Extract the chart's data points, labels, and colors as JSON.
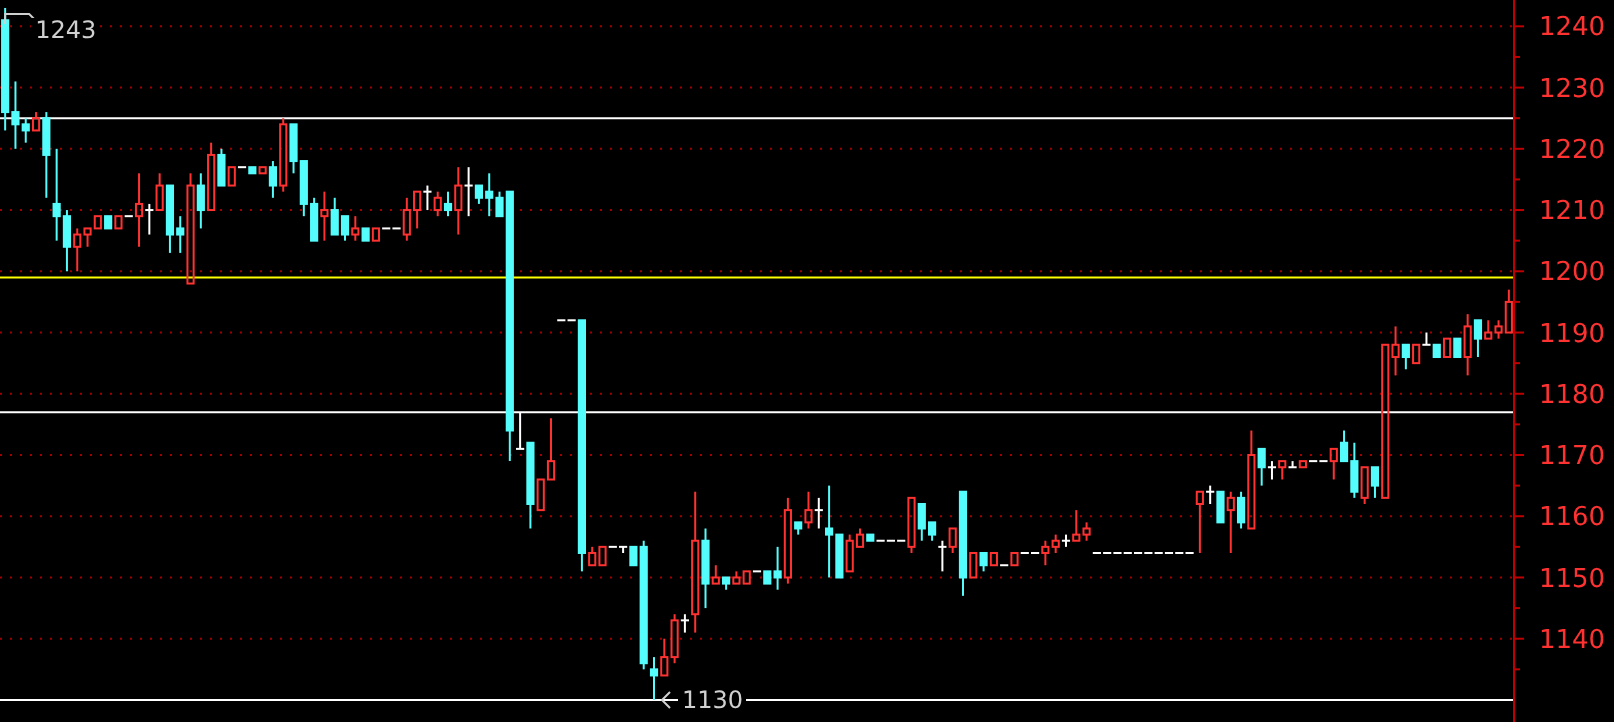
{
  "chart_data": {
    "type": "candlestick",
    "categories": [
      null,
      null,
      null,
      null,
      null,
      null,
      null,
      null,
      null,
      null,
      null,
      null,
      null,
      null,
      null,
      null,
      null,
      null,
      null,
      null,
      null,
      null,
      null,
      null,
      null,
      null,
      null,
      null,
      null,
      null,
      null,
      null,
      null,
      null,
      null,
      null,
      null,
      null,
      null,
      null,
      null,
      null,
      null,
      null,
      null,
      null,
      null,
      null,
      null,
      null,
      null,
      null,
      null,
      null,
      null,
      null,
      null,
      null,
      null,
      null,
      null,
      null,
      null,
      null,
      null,
      null,
      null,
      null,
      null,
      null,
      null,
      null,
      null,
      null,
      null,
      null,
      null,
      null,
      null,
      null,
      null,
      null,
      null,
      null,
      null,
      null,
      null,
      null,
      null,
      null,
      null,
      null,
      null,
      null,
      null,
      null,
      null,
      null,
      null,
      null,
      null,
      null,
      null,
      null,
      null,
      null,
      null,
      null,
      null,
      null,
      null,
      null,
      null,
      null,
      null,
      null,
      null,
      null,
      null,
      null,
      null,
      null,
      null,
      null,
      null,
      null,
      null,
      null,
      null,
      null,
      null,
      null,
      null,
      null,
      null,
      null,
      null,
      null,
      null,
      null,
      null,
      null,
      null,
      null,
      null,
      null,
      null
    ],
    "ohlc": [
      [
        1241,
        1243,
        1223,
        1226
      ],
      [
        1226,
        1231,
        1220,
        1224
      ],
      [
        1224,
        1225,
        1221,
        1223
      ],
      [
        1223,
        1226,
        1223,
        1225
      ],
      [
        1225,
        1226,
        1212,
        1219
      ],
      [
        1211,
        1220,
        1205,
        1209
      ],
      [
        1209,
        1210,
        1200,
        1204
      ],
      [
        1204,
        1207,
        1200,
        1206
      ],
      [
        1206,
        1207,
        1204,
        1207
      ],
      [
        1207,
        1209,
        1207,
        1209
      ],
      [
        1209,
        1209,
        1207,
        1207
      ],
      [
        1207,
        1209,
        1207,
        1209
      ],
      [
        1209,
        1209,
        1209,
        1209
      ],
      [
        1209,
        1216,
        1204,
        1211
      ],
      [
        1210,
        1211,
        1206,
        1210
      ],
      [
        1210,
        1216,
        1210,
        1214
      ],
      [
        1214,
        1214,
        1203,
        1206
      ],
      [
        1207,
        1209,
        1203,
        1206
      ],
      [
        1198,
        1216,
        1198,
        1214
      ],
      [
        1214,
        1216,
        1207,
        1210
      ],
      [
        1210,
        1221,
        1210,
        1219
      ],
      [
        1219,
        1220,
        1214,
        1214
      ],
      [
        1214,
        1217,
        1214,
        1217
      ],
      [
        1217,
        1217,
        1217,
        1217
      ],
      [
        1217,
        1217,
        1216,
        1216
      ],
      [
        1216,
        1217,
        1216,
        1217
      ],
      [
        1217,
        1218,
        1212,
        1214
      ],
      [
        1214,
        1225,
        1213,
        1224
      ],
      [
        1224,
        1224,
        1216,
        1218
      ],
      [
        1218,
        1218,
        1209,
        1211
      ],
      [
        1211,
        1212,
        1205,
        1205
      ],
      [
        1209,
        1213,
        1205,
        1210
      ],
      [
        1210,
        1212,
        1206,
        1206
      ],
      [
        1209,
        1209,
        1205,
        1206
      ],
      [
        1206,
        1209,
        1205,
        1207
      ],
      [
        1207,
        1207,
        1205,
        1205
      ],
      [
        1205,
        1207,
        1205,
        1207
      ],
      [
        1207,
        1207,
        1207,
        1207
      ],
      [
        1207,
        1207,
        1207,
        1207
      ],
      [
        1206,
        1212,
        1205,
        1210
      ],
      [
        1210,
        1213,
        1207,
        1213
      ],
      [
        1213,
        1214,
        1210,
        1213
      ],
      [
        1210,
        1213,
        1209,
        1212
      ],
      [
        1211,
        1213,
        1209,
        1210
      ],
      [
        1210,
        1217,
        1206,
        1214
      ],
      [
        1214,
        1217,
        1209,
        1214
      ],
      [
        1214,
        1214,
        1211,
        1212
      ],
      [
        1213,
        1216,
        1209,
        1212
      ],
      [
        1212,
        1213,
        1209,
        1209
      ],
      [
        1213,
        1213,
        1169,
        1174
      ],
      [
        1171,
        1177,
        1171,
        1171
      ],
      [
        1172,
        1172,
        1158,
        1162
      ],
      [
        1161,
        1166,
        1161,
        1166
      ],
      [
        1166,
        1176,
        1166,
        1169
      ],
      [
        1192,
        1192,
        1192,
        1192
      ],
      [
        1192,
        1192,
        1192,
        1192
      ],
      [
        1192,
        1192,
        1151,
        1154
      ],
      [
        1152,
        1155,
        1152,
        1154
      ],
      [
        1152,
        1155,
        1152,
        1155
      ],
      [
        1155,
        1155,
        1155,
        1155
      ],
      [
        1155,
        1155,
        1154,
        1155
      ],
      [
        1155,
        1155,
        1152,
        1152
      ],
      [
        1155,
        1156,
        1135,
        1136
      ],
      [
        1135,
        1137,
        1130,
        1134
      ],
      [
        1134,
        1140,
        1134,
        1137
      ],
      [
        1137,
        1144,
        1136,
        1143
      ],
      [
        1143,
        1144,
        1141,
        1143
      ],
      [
        1144,
        1164,
        1141,
        1156
      ],
      [
        1156,
        1158,
        1145,
        1149
      ],
      [
        1149,
        1152,
        1149,
        1150
      ],
      [
        1150,
        1150,
        1148,
        1149
      ],
      [
        1149,
        1151,
        1149,
        1150
      ],
      [
        1149,
        1151,
        1149,
        1151
      ],
      [
        1151,
        1151,
        1151,
        1151
      ],
      [
        1151,
        1151,
        1149,
        1149
      ],
      [
        1151,
        1155,
        1148,
        1150
      ],
      [
        1150,
        1163,
        1149,
        1161
      ],
      [
        1159,
        1159,
        1157,
        1158
      ],
      [
        1159,
        1164,
        1158,
        1161
      ],
      [
        1161,
        1163,
        1158,
        1161
      ],
      [
        1158,
        1165,
        1150,
        1157
      ],
      [
        1157,
        1157,
        1150,
        1150
      ],
      [
        1151,
        1157,
        1151,
        1156
      ],
      [
        1155,
        1158,
        1155,
        1157
      ],
      [
        1157,
        1157,
        1156,
        1156
      ],
      [
        1156,
        1156,
        1156,
        1156
      ],
      [
        1156,
        1156,
        1156,
        1156
      ],
      [
        1156,
        1156,
        1156,
        1156
      ],
      [
        1155,
        1163,
        1154,
        1163
      ],
      [
        1162,
        1162,
        1156,
        1158
      ],
      [
        1159,
        1159,
        1156,
        1157
      ],
      [
        1155,
        1156,
        1151,
        1155
      ],
      [
        1155,
        1158,
        1154,
        1158
      ],
      [
        1164,
        1164,
        1147,
        1150
      ],
      [
        1150,
        1154,
        1150,
        1154
      ],
      [
        1154,
        1154,
        1151,
        1152
      ],
      [
        1152,
        1154,
        1152,
        1154
      ],
      [
        1152,
        1152,
        1152,
        1152
      ],
      [
        1152,
        1154,
        1152,
        1154
      ],
      [
        1154,
        1154,
        1154,
        1154
      ],
      [
        1154,
        1154,
        1154,
        1154
      ],
      [
        1154,
        1156,
        1152,
        1155
      ],
      [
        1155,
        1157,
        1154,
        1156
      ],
      [
        1156,
        1157,
        1155,
        1156
      ],
      [
        1156,
        1161,
        1156,
        1157
      ],
      [
        1157,
        1159,
        1156,
        1158
      ],
      [
        1154,
        1154,
        1154,
        1154
      ],
      [
        1154,
        1154,
        1154,
        1154
      ],
      [
        1154,
        1154,
        1154,
        1154
      ],
      [
        1154,
        1154,
        1154,
        1154
      ],
      [
        1154,
        1154,
        1154,
        1154
      ],
      [
        1154,
        1154,
        1154,
        1154
      ],
      [
        1154,
        1154,
        1154,
        1154
      ],
      [
        1154,
        1154,
        1154,
        1154
      ],
      [
        1154,
        1154,
        1154,
        1154
      ],
      [
        1154,
        1154,
        1154,
        1154
      ],
      [
        1162,
        1164,
        1154,
        1164
      ],
      [
        1164,
        1165,
        1162,
        1164
      ],
      [
        1164,
        1164,
        1159,
        1159
      ],
      [
        1161,
        1164,
        1154,
        1163
      ],
      [
        1163,
        1164,
        1158,
        1159
      ],
      [
        1158,
        1174,
        1158,
        1170
      ],
      [
        1171,
        1171,
        1165,
        1168
      ],
      [
        1168,
        1169,
        1166,
        1168
      ],
      [
        1168,
        1169,
        1166,
        1169
      ],
      [
        1168,
        1169,
        1168,
        1168
      ],
      [
        1168,
        1169,
        1168,
        1169
      ],
      [
        1169,
        1169,
        1169,
        1169
      ],
      [
        1169,
        1169,
        1169,
        1169
      ],
      [
        1169,
        1171,
        1166,
        1171
      ],
      [
        1172,
        1174,
        1169,
        1169
      ],
      [
        1169,
        1172,
        1163,
        1164
      ],
      [
        1163,
        1168,
        1162,
        1168
      ],
      [
        1168,
        1168,
        1163,
        1165
      ],
      [
        1163,
        1188,
        1163,
        1188
      ],
      [
        1186,
        1191,
        1183,
        1188
      ],
      [
        1188,
        1188,
        1184,
        1186
      ],
      [
        1185,
        1188,
        1185,
        1188
      ],
      [
        1188,
        1190,
        1188,
        1188
      ],
      [
        1188,
        1188,
        1186,
        1186
      ],
      [
        1186,
        1189,
        1186,
        1189
      ],
      [
        1189,
        1189,
        1186,
        1186
      ],
      [
        1186,
        1193,
        1183,
        1191
      ],
      [
        1192,
        1192,
        1186,
        1189
      ],
      [
        1189,
        1192,
        1189,
        1190
      ],
      [
        1190,
        1192,
        1189,
        1191
      ],
      [
        1190,
        1197,
        1190,
        1195
      ]
    ],
    "colors": [
      "#54fcfc",
      "#54fcfc",
      "#54fcfc",
      "#ff3232",
      "#54fcfc",
      "#54fcfc",
      "#54fcfc",
      "#ff3232",
      "#ff3232",
      "#ff3232",
      "#54fcfc",
      "#ff3232",
      "#ffffff",
      "#ff3232",
      "#ffffff",
      "#ff3232",
      "#54fcfc",
      "#54fcfc",
      "#ff3232",
      "#54fcfc",
      "#ff3232",
      "#54fcfc",
      "#ff3232",
      "#ffffff",
      "#54fcfc",
      "#ff3232",
      "#54fcfc",
      "#ff3232",
      "#54fcfc",
      "#54fcfc",
      "#54fcfc",
      "#ff3232",
      "#54fcfc",
      "#54fcfc",
      "#ff3232",
      "#54fcfc",
      "#ff3232",
      "#ffffff",
      "#ffffff",
      "#ff3232",
      "#ff3232",
      "#ffffff",
      "#ff3232",
      "#54fcfc",
      "#ff3232",
      "#ffffff",
      "#54fcfc",
      "#54fcfc",
      "#54fcfc",
      "#54fcfc",
      "#ffffff",
      "#54fcfc",
      "#ff3232",
      "#ff3232",
      "#ffffff",
      "#ffffff",
      "#54fcfc",
      "#ff3232",
      "#ff3232",
      "#ffffff",
      "#ffffff",
      "#54fcfc",
      "#54fcfc",
      "#54fcfc",
      "#ff3232",
      "#ff3232",
      "#ffffff",
      "#ff3232",
      "#54fcfc",
      "#ff3232",
      "#54fcfc",
      "#ff3232",
      "#ff3232",
      "#ffffff",
      "#54fcfc",
      "#54fcfc",
      "#ff3232",
      "#54fcfc",
      "#ff3232",
      "#ffffff",
      "#54fcfc",
      "#54fcfc",
      "#ff3232",
      "#ff3232",
      "#54fcfc",
      "#ffffff",
      "#ffffff",
      "#ffffff",
      "#ff3232",
      "#54fcfc",
      "#54fcfc",
      "#ffffff",
      "#ff3232",
      "#54fcfc",
      "#ff3232",
      "#54fcfc",
      "#ff3232",
      "#ffffff",
      "#ff3232",
      "#ffffff",
      "#ffffff",
      "#ff3232",
      "#ff3232",
      "#ffffff",
      "#ff3232",
      "#ff3232",
      "#ffffff",
      "#ffffff",
      "#ffffff",
      "#ffffff",
      "#ffffff",
      "#ffffff",
      "#ffffff",
      "#ffffff",
      "#ffffff",
      "#ffffff",
      "#ff3232",
      "#ffffff",
      "#54fcfc",
      "#ff3232",
      "#54fcfc",
      "#ff3232",
      "#54fcfc",
      "#ffffff",
      "#ff3232",
      "#ffffff",
      "#ff3232",
      "#ffffff",
      "#ffffff",
      "#ff3232",
      "#54fcfc",
      "#54fcfc",
      "#ff3232",
      "#54fcfc",
      "#ff3232",
      "#ff3232",
      "#54fcfc",
      "#ff3232",
      "#ffffff",
      "#54fcfc",
      "#ff3232",
      "#54fcfc",
      "#ff3232",
      "#54fcfc",
      "#ff3232",
      "#ff3232",
      "#ff3232"
    ],
    "ylim": [
      1126.4,
      1244.3
    ],
    "yticks": [
      {
        "value": 1135,
        "label": null
      },
      1140,
      {
        "value": 1145,
        "label": null
      },
      1150,
      {
        "value": 1155,
        "label": null
      },
      1160,
      {
        "value": 1165,
        "label": null
      },
      1170,
      {
        "value": 1175,
        "label": null
      },
      1180,
      {
        "value": 1185,
        "label": null
      },
      1190,
      {
        "value": 1195,
        "label": null
      },
      1200,
      {
        "value": 1205,
        "label": null
      },
      1210,
      {
        "value": 1215,
        "label": null
      },
      1220,
      {
        "value": 1225,
        "label": null
      },
      1230,
      {
        "value": 1235,
        "label": null
      },
      1240
    ],
    "grid": "y",
    "ref_lines": [
      {
        "axis": "y",
        "value": 1225,
        "color": "#ffffff"
      },
      {
        "axis": "y",
        "value": 1199,
        "color": "#ffff00"
      },
      {
        "axis": "y",
        "value": 1177,
        "color": "#ffffff"
      },
      {
        "axis": "y",
        "value": 1130,
        "color": "#ffffff"
      }
    ],
    "annotations": [
      "1243",
      "1130"
    ]
  }
}
